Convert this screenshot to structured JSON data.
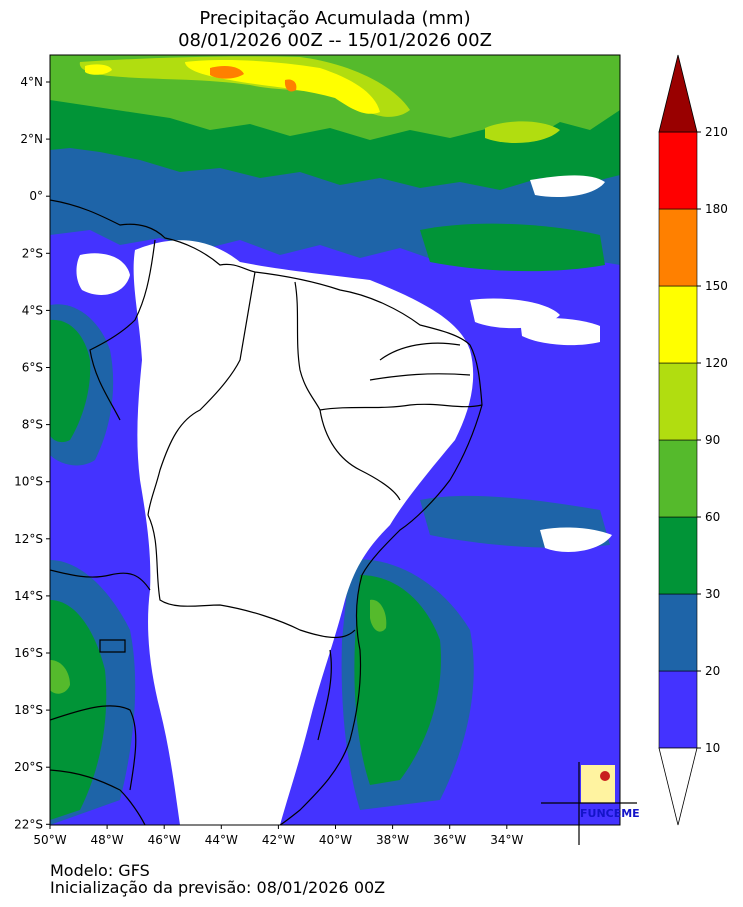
{
  "title_line1": "Precipitação Acumulada (mm)",
  "title_line2": "08/01/2026 00Z -- 15/01/2026 00Z",
  "footer_model": "Modelo: GFS",
  "footer_init": "Inicialização da previsão: 08/01/2026 00Z",
  "logo_text": "FUNCEME",
  "lat_ticks": [
    "4°N",
    "2°N",
    "0°",
    "2°S",
    "4°S",
    "6°S",
    "8°S",
    "10°S",
    "12°S",
    "14°S",
    "16°S",
    "18°S",
    "20°S",
    "22°S"
  ],
  "lon_ticks": [
    "50°W",
    "48°W",
    "46°W",
    "44°W",
    "42°W",
    "40°W",
    "38°W",
    "36°W",
    "34°W"
  ],
  "colorbar": {
    "levels": [
      "10",
      "20",
      "30",
      "60",
      "90",
      "120",
      "150",
      "180",
      "210"
    ],
    "colors": [
      "#4433ff",
      "#1e64a8",
      "#019437",
      "#55ba2c",
      "#b1dd10",
      "#ffff00",
      "#ff8000",
      "#ff0000"
    ],
    "over_color": "#990000",
    "under_color": "#ffffff"
  },
  "palette": {
    "c10": "#4433ff",
    "c20": "#1e64a8",
    "c30": "#019437",
    "c60": "#55ba2c",
    "c90": "#b1dd10",
    "c120": "#ffff00",
    "c150": "#ff8000"
  }
}
